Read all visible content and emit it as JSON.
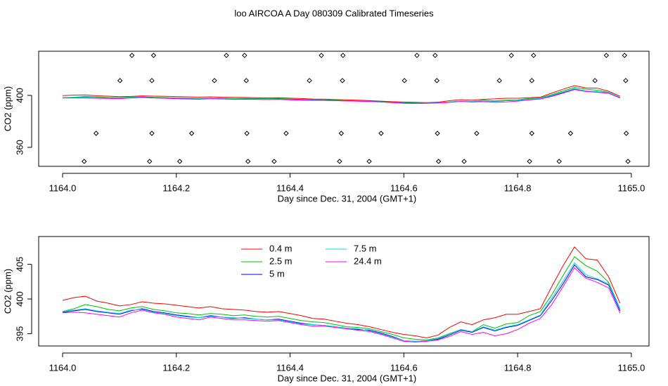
{
  "chart_data": [
    {
      "type": "scatter",
      "title": "loo AIRCOA A  Day 080309  Calibrated Timeseries",
      "xlabel": "Day since Dec. 31, 2004 (GMT+1)",
      "ylabel": "CO2 (ppm)",
      "xlim": [
        1163.958,
        1165.031
      ],
      "ylim": [
        345.4,
        434
      ],
      "xticks": [
        {
          "value": 1164,
          "label": "1164.0"
        },
        1164.2,
        1164.4,
        1164.6,
        1164.8,
        {
          "value": 1165,
          "label": "1165.0"
        }
      ],
      "yticks": [
        360,
        400
      ],
      "series": [
        {
          "color": "#000000",
          "x": [
            1164.122,
            1164.16,
            1164.288,
            1164.32,
            1164.455,
            1164.493,
            1164.623,
            1164.655,
            1164.789,
            1164.828,
            1164.956,
            1164.988,
            1164.101,
            1164.157,
            1164.267,
            1164.323,
            1164.434,
            1164.492,
            1164.601,
            1164.658,
            1164.768,
            1164.825,
            1164.936,
            1164.99,
            1164.059,
            1164.157,
            1164.227,
            1164.324,
            1164.393,
            1164.49,
            1164.56,
            1164.659,
            1164.728,
            1164.825,
            1164.893,
            1164.991,
            1164.038,
            1164.153,
            1164.206,
            1164.326,
            1164.372,
            1164.487,
            1164.539,
            1164.661,
            1164.706,
            1164.821,
            1164.873,
            1164.994
          ],
          "values": [
            430.8,
            430.8,
            430.8,
            430.8,
            430.8,
            430.8,
            430.8,
            430.8,
            430.8,
            430.8,
            430.8,
            430.8,
            411.4,
            411.4,
            411.4,
            411.4,
            411.4,
            411.4,
            411.4,
            411.4,
            411.4,
            411.4,
            411.4,
            411.4,
            370.8,
            370.8,
            370.8,
            370.8,
            370.8,
            370.8,
            370.8,
            370.8,
            370.8,
            370.8,
            370.8,
            370.8,
            349.2,
            349.2,
            349.2,
            349.2,
            349.2,
            349.2,
            349.2,
            349.2,
            349.2,
            349.2,
            349.2,
            349.2
          ]
        }
      ]
    },
    {
      "type": "line",
      "xlabel": "Day since Dec. 31, 2004 (GMT+1)",
      "ylabel": "CO2 (ppm)",
      "xlim": [
        1163.958,
        1165.031
      ],
      "ylim": [
        393.23,
        409.0
      ],
      "xticks": [
        {
          "value": 1164,
          "label": "1164.0"
        },
        1164.2,
        1164.4,
        1164.6,
        1164.8,
        {
          "value": 1165,
          "label": "1165.0"
        }
      ],
      "yticks": [
        395,
        400,
        405
      ],
      "legend": "top",
      "x": [
        1164.0,
        1164.02,
        1164.04,
        1164.06,
        1164.08,
        1164.1,
        1164.12,
        1164.14,
        1164.16,
        1164.18,
        1164.2,
        1164.22,
        1164.24,
        1164.26,
        1164.28,
        1164.3,
        1164.32,
        1164.34,
        1164.36,
        1164.38,
        1164.4,
        1164.42,
        1164.44,
        1164.46,
        1164.48,
        1164.5,
        1164.52,
        1164.54,
        1164.56,
        1164.58,
        1164.6,
        1164.62,
        1164.64,
        1164.66,
        1164.68,
        1164.7,
        1164.72,
        1164.74,
        1164.76,
        1164.78,
        1164.8,
        1164.82,
        1164.84,
        1164.86,
        1164.88,
        1164.9,
        1164.92,
        1164.94,
        1164.96,
        1164.98
      ],
      "series": [
        {
          "name": "0.4 m",
          "color": "#ff0000",
          "values": [
            399.8,
            400.2,
            400.4,
            399.7,
            399.4,
            399.0,
            399.2,
            399.6,
            399.4,
            399.3,
            399.1,
            398.9,
            398.7,
            398.9,
            398.6,
            398.5,
            398.4,
            398.2,
            398.1,
            398.2,
            397.9,
            397.6,
            397.2,
            397.1,
            396.8,
            396.5,
            396.3,
            396.0,
            395.6,
            395.2,
            394.9,
            394.7,
            394.4,
            394.8,
            395.9,
            396.7,
            396.3,
            397.0,
            397.3,
            397.8,
            397.8,
            398.2,
            398.6,
            401.8,
            404.8,
            407.5,
            405.8,
            405.6,
            403.2,
            399.4
          ]
        },
        {
          "name": "2.5 m",
          "color": "#00c000",
          "values": [
            398.2,
            398.6,
            399.2,
            398.9,
            398.5,
            398.3,
            398.7,
            398.9,
            398.5,
            398.3,
            398.0,
            397.9,
            397.7,
            397.9,
            397.8,
            397.6,
            397.7,
            397.5,
            397.4,
            397.5,
            397.2,
            396.9,
            396.7,
            396.6,
            396.3,
            396.0,
            395.9,
            395.7,
            395.3,
            394.9,
            394.4,
            394.2,
            394.1,
            394.4,
            395.0,
            395.6,
            395.3,
            396.3,
            395.8,
            396.4,
            396.6,
            397.6,
            398.2,
            400.6,
            403.4,
            406.1,
            404.8,
            404.0,
            402.4,
            398.6
          ]
        },
        {
          "name": "5 m",
          "color": "#0000ff",
          "values": [
            398.1,
            398.3,
            398.5,
            398.2,
            398.0,
            397.8,
            398.3,
            398.6,
            398.2,
            398.0,
            397.7,
            397.5,
            397.3,
            397.6,
            397.4,
            397.2,
            397.3,
            397.1,
            397.0,
            397.1,
            396.8,
            396.5,
            396.3,
            396.2,
            396.0,
            395.8,
            395.6,
            395.5,
            395.1,
            394.6,
            394.0,
            393.9,
            394.0,
            394.2,
            394.8,
            395.5,
            395.2,
            395.9,
            395.4,
            395.9,
            396.2,
            396.9,
            397.6,
            399.8,
            402.2,
            404.9,
            403.2,
            402.8,
            402.0,
            398.3
          ]
        },
        {
          "name": "7.5 m",
          "color": "#00e0e0",
          "values": [
            398.2,
            398.4,
            398.6,
            398.3,
            398.1,
            397.9,
            398.4,
            398.5,
            398.1,
            397.9,
            397.6,
            397.4,
            397.3,
            397.5,
            397.4,
            397.3,
            397.2,
            397.1,
            397.0,
            397.0,
            396.7,
            396.4,
            396.3,
            396.2,
            396.0,
            395.8,
            395.7,
            395.4,
            395.0,
            394.5,
            394.0,
            393.9,
            394.0,
            394.3,
            394.9,
            395.6,
            395.3,
            396.0,
            395.5,
            396.0,
            396.3,
            397.0,
            397.7,
            400.1,
            402.6,
            405.2,
            403.5,
            402.9,
            402.2,
            398.5
          ]
        },
        {
          "name": "24.4 m",
          "color": "#ff00ff",
          "values": [
            398.0,
            398.1,
            398.0,
            397.8,
            397.6,
            397.4,
            398.0,
            398.4,
            398.0,
            397.8,
            397.4,
            397.2,
            397.0,
            397.4,
            397.2,
            397.0,
            397.0,
            396.9,
            396.8,
            396.9,
            396.6,
            396.3,
            396.1,
            396.1,
            395.9,
            395.7,
            395.5,
            395.3,
            394.9,
            394.4,
            393.9,
            393.8,
            393.9,
            394.1,
            394.6,
            395.3,
            394.9,
            395.2,
            394.7,
            395.0,
            395.6,
            396.5,
            397.2,
            399.2,
            401.8,
            404.5,
            403.0,
            402.4,
            401.6,
            398.0
          ]
        }
      ]
    }
  ]
}
